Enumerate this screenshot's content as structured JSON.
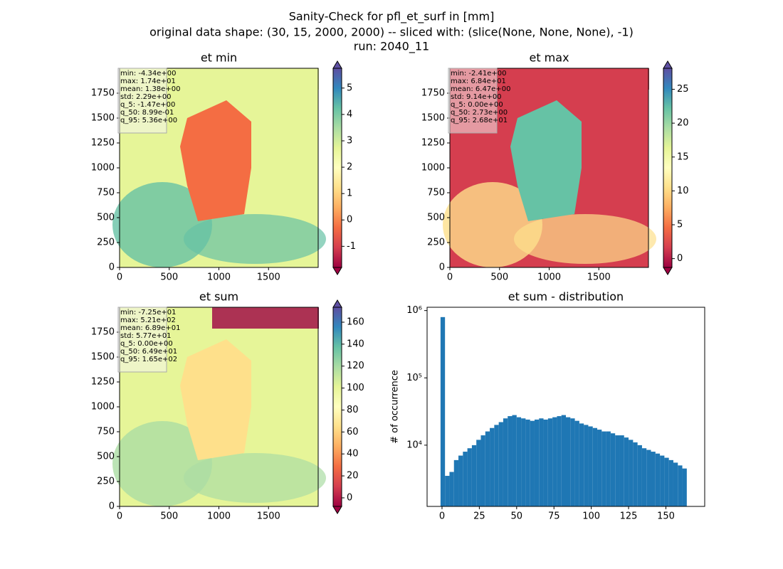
{
  "title_lines": [
    "Sanity-Check for pfl_et_surf in [mm]",
    "original data shape: (30, 15, 2000, 2000) -- sliced with: (slice(None, None, None), -1)",
    "run: 2040_11"
  ],
  "chart_data": [
    {
      "type": "heatmap",
      "title": "et min",
      "colormap": "Spectral",
      "colors": [
        "#9e0142",
        "#d53e4f",
        "#f46d43",
        "#fdae61",
        "#fee08b",
        "#ffffbf",
        "#e6f598",
        "#abdda4",
        "#66c2a5",
        "#3288bd",
        "#5e4fa2"
      ],
      "xlim": [
        0,
        2000
      ],
      "ylim": [
        0,
        2000
      ],
      "xticks": [
        0,
        500,
        1000,
        1500
      ],
      "yticks": [
        0,
        250,
        500,
        750,
        1000,
        1250,
        1500,
        1750
      ],
      "clim": [
        -1.8,
        5.75
      ],
      "cticks": [
        -1,
        0,
        1,
        2,
        3,
        4,
        5
      ],
      "annotations": [
        "min: -4.34e+00",
        "max: 1.74e+01",
        "mean: 1.38e+00",
        "std: 2.29e+00",
        "q_5: -1.47e+00",
        "q_50: 8.99e-01",
        "q_95: 5.36e+00"
      ]
    },
    {
      "type": "heatmap",
      "title": "et max",
      "colormap": "Spectral",
      "colors": [
        "#9e0142",
        "#d53e4f",
        "#f46d43",
        "#fdae61",
        "#fee08b",
        "#ffffbf",
        "#e6f598",
        "#abdda4",
        "#66c2a5",
        "#3288bd",
        "#5e4fa2"
      ],
      "xlim": [
        0,
        2000
      ],
      "ylim": [
        0,
        2000
      ],
      "xticks": [
        0,
        500,
        1000,
        1500
      ],
      "yticks": [
        0,
        250,
        500,
        750,
        1000,
        1250,
        1500,
        1750
      ],
      "clim": [
        -1.3,
        28.1
      ],
      "cticks": [
        0,
        5,
        10,
        15,
        20,
        25
      ],
      "annotations": [
        "min: -2.41e+00",
        "max: 6.84e+01",
        "mean: 6.47e+00",
        "std: 9.14e+00",
        "q_5: 0.00e+00",
        "q_50: 2.73e+00",
        "q_95: 2.68e+01"
      ]
    },
    {
      "type": "heatmap",
      "title": "et sum",
      "colormap": "Spectral",
      "colors": [
        "#9e0142",
        "#d53e4f",
        "#f46d43",
        "#fdae61",
        "#fee08b",
        "#ffffbf",
        "#e6f598",
        "#abdda4",
        "#66c2a5",
        "#3288bd",
        "#5e4fa2"
      ],
      "xlim": [
        0,
        2000
      ],
      "ylim": [
        0,
        2000
      ],
      "xticks": [
        0,
        500,
        1000,
        1500
      ],
      "yticks": [
        0,
        250,
        500,
        750,
        1000,
        1250,
        1500,
        1750
      ],
      "clim": [
        -7.8,
        173.6
      ],
      "cticks": [
        0,
        20,
        40,
        60,
        80,
        100,
        120,
        140,
        160
      ],
      "annotations": [
        "min: -7.25e+01",
        "max: 5.21e+02",
        "mean: 6.89e+01",
        "std: 5.77e+01",
        "q_5: 0.00e+00",
        "q_50: 6.49e+01",
        "q_95: 1.65e+02"
      ]
    },
    {
      "type": "histogram",
      "title": "et sum - distribution",
      "y_label": "# of occurrence",
      "color": "#1f77b4",
      "log_y": true,
      "bins": [
        -1,
        2,
        5,
        8,
        11,
        14,
        17,
        20,
        23,
        26,
        29,
        32,
        35,
        38,
        41,
        44,
        47,
        50,
        53,
        56,
        59,
        62,
        65,
        68,
        71,
        74,
        77,
        80,
        83,
        86,
        89,
        92,
        95,
        98,
        101,
        104,
        107,
        110,
        113,
        116,
        119,
        122,
        125,
        128,
        131,
        134,
        137,
        140,
        143,
        146,
        149,
        152,
        155,
        158,
        161,
        164
      ],
      "values": [
        800000,
        3500,
        4000,
        6000,
        7000,
        8000,
        9000,
        10000,
        12000,
        14000,
        16000,
        18000,
        20000,
        22000,
        25000,
        27000,
        28000,
        26000,
        25000,
        24000,
        23000,
        24000,
        25000,
        24000,
        25000,
        26000,
        27000,
        28000,
        26000,
        25000,
        23000,
        21000,
        20000,
        19000,
        18000,
        17000,
        16000,
        16000,
        15000,
        14000,
        14000,
        13000,
        12000,
        11000,
        10000,
        9000,
        8500,
        8000,
        7500,
        7000,
        6500,
        6000,
        5500,
        5000,
        4500
      ],
      "xlim": [
        -10,
        176
      ],
      "ylim": [
        1230,
        1120000
      ],
      "xticks": [
        0,
        25,
        50,
        75,
        100,
        125,
        150
      ],
      "yticks": [
        {
          "value": 10000,
          "label": "10⁴"
        },
        {
          "value": 100000,
          "label": "10⁵"
        },
        {
          "value": 1000000,
          "label": "10⁶"
        }
      ]
    }
  ]
}
